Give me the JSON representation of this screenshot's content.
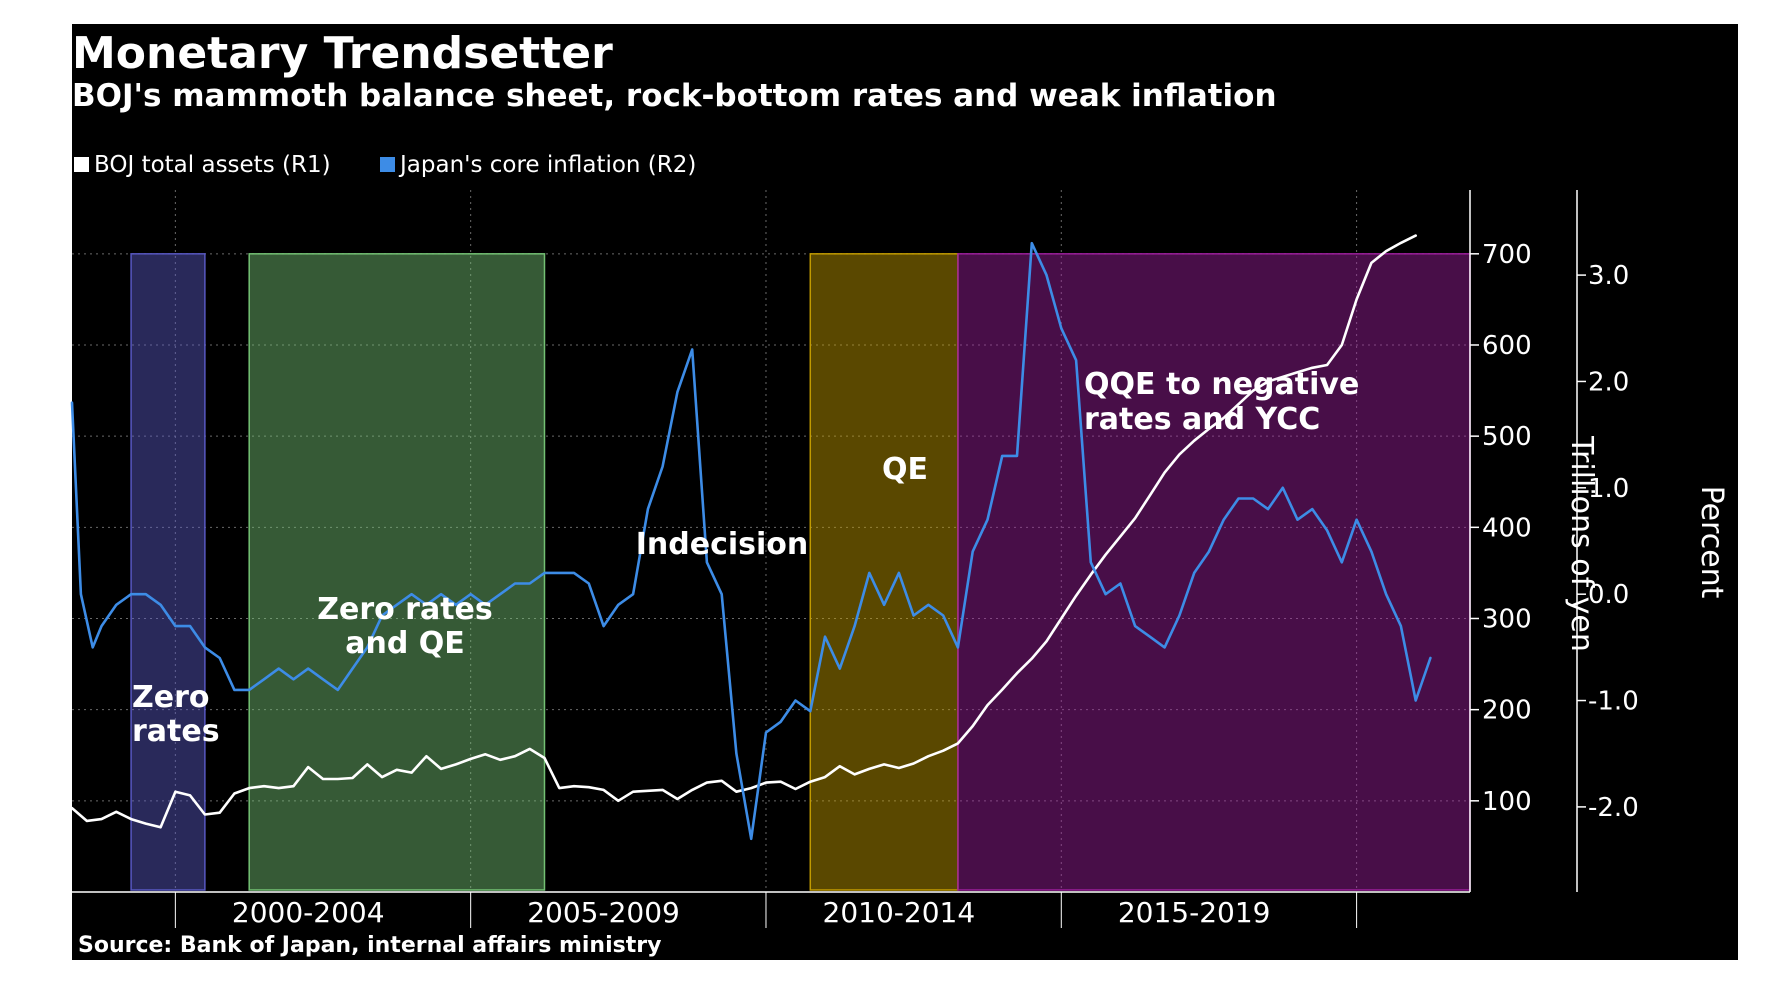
{
  "chart_data": {
    "type": "line",
    "title": "Monetary Trendsetter",
    "subtitle": "BOJ's mammoth balance sheet, rock-bottom rates and weak inflation",
    "source": "Source: Bank of Japan, internal affairs ministry",
    "x_range": [
      1996.5,
      2020.17
    ],
    "period_labels": [
      {
        "label": "2000-2004",
        "center": 2000.5
      },
      {
        "label": "2005-2009",
        "center": 2005.5
      },
      {
        "label": "2010-2014",
        "center": 2010.5
      },
      {
        "label": "2015-2019",
        "center": 2015.5
      }
    ],
    "period_dividers": [
      1998.25,
      2003.25,
      2008.25,
      2013.25,
      2018.25
    ],
    "legend": {
      "placement": "top-left",
      "items": [
        {
          "label": "BOJ total assets (R1)",
          "color": "#ffffff"
        },
        {
          "label": "Japan's core inflation  (R2)",
          "color": "#3d8ce6"
        }
      ]
    },
    "y_axis_r1": {
      "label": "Trillions of yen",
      "range": [
        0,
        770
      ],
      "ticks": [
        100,
        200,
        300,
        400,
        500,
        600,
        700
      ],
      "tick_labels": [
        "100",
        "200",
        "300",
        "400",
        "500",
        "600",
        "700"
      ]
    },
    "y_axis_r2": {
      "label": "Percent",
      "range": [
        -2.8,
        3.8
      ],
      "ticks": [
        -2,
        -1,
        0,
        1,
        2,
        3
      ],
      "tick_labels": [
        "-2.0",
        "-1.0",
        "0.0",
        "1.0",
        "2.0",
        "3.0"
      ]
    },
    "shaded_periods": [
      {
        "label": "Zero rates",
        "start": 1997.5,
        "end": 1998.75,
        "color": "#5b5bc8"
      },
      {
        "label": "Zero rates and QE",
        "start": 1999.5,
        "end": 2004.5,
        "color": "#78c878"
      },
      {
        "label": "QE",
        "start": 2009.0,
        "end": 2011.5,
        "color": "#c8a000"
      },
      {
        "label": "QQE to negative rates and YCC",
        "start": 2011.5,
        "end": 2020.17,
        "color": "#a020a0"
      }
    ],
    "annotations": [
      {
        "label": "Indecision"
      }
    ],
    "series": [
      {
        "name": "BOJ total assets (R1)",
        "color": "#ffffff",
        "axis": "R1",
        "points": [
          [
            1996.5,
            92
          ],
          [
            1996.75,
            78
          ],
          [
            1997.0,
            80
          ],
          [
            1997.25,
            88
          ],
          [
            1997.5,
            80
          ],
          [
            1997.75,
            75
          ],
          [
            1998.0,
            71
          ],
          [
            1998.25,
            110
          ],
          [
            1998.5,
            106
          ],
          [
            1998.75,
            85
          ],
          [
            1999.0,
            87
          ],
          [
            1999.25,
            108
          ],
          [
            1999.5,
            114
          ],
          [
            1999.75,
            116
          ],
          [
            2000.0,
            114
          ],
          [
            2000.25,
            116
          ],
          [
            2000.5,
            137
          ],
          [
            2000.75,
            124
          ],
          [
            2001.0,
            124
          ],
          [
            2001.25,
            125
          ],
          [
            2001.5,
            140
          ],
          [
            2001.75,
            126
          ],
          [
            2002.0,
            134
          ],
          [
            2002.25,
            131
          ],
          [
            2002.5,
            149
          ],
          [
            2002.75,
            135
          ],
          [
            2003.0,
            140
          ],
          [
            2003.25,
            146
          ],
          [
            2003.5,
            151
          ],
          [
            2003.75,
            145
          ],
          [
            2004.0,
            149
          ],
          [
            2004.25,
            157
          ],
          [
            2004.5,
            147
          ],
          [
            2004.75,
            114
          ],
          [
            2005.0,
            116
          ],
          [
            2005.25,
            115
          ],
          [
            2005.5,
            112
          ],
          [
            2005.75,
            100
          ],
          [
            2006.0,
            110
          ],
          [
            2006.25,
            111
          ],
          [
            2006.5,
            112
          ],
          [
            2006.75,
            102
          ],
          [
            2007.0,
            112
          ],
          [
            2007.25,
            120
          ],
          [
            2007.5,
            122
          ],
          [
            2007.75,
            110
          ],
          [
            2008.0,
            114
          ],
          [
            2008.25,
            120
          ],
          [
            2008.5,
            121
          ],
          [
            2008.75,
            113
          ],
          [
            2009.0,
            121
          ],
          [
            2009.25,
            126
          ],
          [
            2009.5,
            138
          ],
          [
            2009.75,
            129
          ],
          [
            2010.0,
            135
          ],
          [
            2010.25,
            140
          ],
          [
            2010.5,
            136
          ],
          [
            2010.75,
            141
          ],
          [
            2011.0,
            149
          ],
          [
            2011.25,
            155
          ],
          [
            2011.5,
            163
          ],
          [
            2011.75,
            182
          ],
          [
            2012.0,
            205
          ],
          [
            2012.25,
            222
          ],
          [
            2012.5,
            240
          ],
          [
            2012.75,
            256
          ],
          [
            2013.0,
            275
          ],
          [
            2013.25,
            300
          ],
          [
            2013.5,
            325
          ],
          [
            2013.75,
            348
          ],
          [
            2014.0,
            370
          ],
          [
            2014.25,
            390
          ],
          [
            2014.5,
            410
          ],
          [
            2014.75,
            435
          ],
          [
            2015.0,
            460
          ],
          [
            2015.25,
            480
          ],
          [
            2015.5,
            495
          ],
          [
            2015.75,
            508
          ],
          [
            2016.0,
            520
          ],
          [
            2016.25,
            535
          ],
          [
            2016.5,
            550
          ],
          [
            2016.75,
            560
          ],
          [
            2017.0,
            565
          ],
          [
            2017.25,
            570
          ],
          [
            2017.5,
            575
          ],
          [
            2017.75,
            578
          ],
          [
            2018.0,
            600
          ],
          [
            2018.25,
            650
          ],
          [
            2018.5,
            690
          ],
          [
            2018.75,
            703
          ],
          [
            2019.0,
            712
          ],
          [
            2019.25,
            720
          ]
        ]
      },
      {
        "name": "Japan's core inflation  (R2)",
        "color": "#3d8ce6",
        "axis": "R2",
        "points": [
          [
            1996.5,
            1.8
          ],
          [
            1996.65,
            0.0
          ],
          [
            1996.85,
            -0.5
          ],
          [
            1997.0,
            -0.3
          ],
          [
            1997.25,
            -0.1
          ],
          [
            1997.5,
            0.0
          ],
          [
            1997.75,
            0.0
          ],
          [
            1998.0,
            -0.1
          ],
          [
            1998.25,
            -0.3
          ],
          [
            1998.5,
            -0.3
          ],
          [
            1998.75,
            -0.5
          ],
          [
            1999.0,
            -0.6
          ],
          [
            1999.25,
            -0.9
          ],
          [
            1999.5,
            -0.9
          ],
          [
            1999.75,
            -0.8
          ],
          [
            2000.0,
            -0.7
          ],
          [
            2000.25,
            -0.8
          ],
          [
            2000.5,
            -0.7
          ],
          [
            2000.75,
            -0.8
          ],
          [
            2001.0,
            -0.9
          ],
          [
            2001.25,
            -0.7
          ],
          [
            2001.5,
            -0.5
          ],
          [
            2001.75,
            -0.2
          ],
          [
            2002.0,
            -0.1
          ],
          [
            2002.25,
            0.0
          ],
          [
            2002.5,
            -0.1
          ],
          [
            2002.75,
            0.0
          ],
          [
            2003.0,
            -0.1
          ],
          [
            2003.25,
            0.0
          ],
          [
            2003.5,
            -0.1
          ],
          [
            2003.75,
            0.0
          ],
          [
            2004.0,
            0.1
          ],
          [
            2004.25,
            0.1
          ],
          [
            2004.5,
            0.2
          ],
          [
            2004.75,
            0.2
          ],
          [
            2005.0,
            0.2
          ],
          [
            2005.25,
            0.1
          ],
          [
            2005.5,
            -0.3
          ],
          [
            2005.75,
            -0.1
          ],
          [
            2006.0,
            0.0
          ],
          [
            2006.25,
            0.8
          ],
          [
            2006.5,
            1.2
          ],
          [
            2006.75,
            1.9
          ],
          [
            2007.0,
            2.3
          ],
          [
            2007.25,
            0.3
          ],
          [
            2007.5,
            0.0
          ],
          [
            2007.75,
            -1.5
          ],
          [
            2008.0,
            -2.3
          ],
          [
            2008.25,
            -1.3
          ],
          [
            2008.5,
            -1.2
          ],
          [
            2008.75,
            -1.0
          ],
          [
            2009.0,
            -1.1
          ],
          [
            2009.25,
            -0.4
          ],
          [
            2009.5,
            -0.7
          ],
          [
            2009.75,
            -0.3
          ],
          [
            2010.0,
            0.2
          ],
          [
            2010.25,
            -0.1
          ],
          [
            2010.5,
            0.2
          ],
          [
            2010.75,
            -0.2
          ],
          [
            2011.0,
            -0.1
          ],
          [
            2011.25,
            -0.2
          ],
          [
            2011.5,
            -0.5
          ],
          [
            2011.75,
            0.4
          ],
          [
            2012.0,
            0.7
          ],
          [
            2012.25,
            1.3
          ],
          [
            2012.5,
            1.3
          ],
          [
            2012.75,
            3.3
          ],
          [
            2013.0,
            3.0
          ],
          [
            2013.25,
            2.5
          ],
          [
            2013.5,
            2.2
          ],
          [
            2013.75,
            0.3
          ],
          [
            2014.0,
            0.0
          ],
          [
            2014.25,
            0.1
          ],
          [
            2014.5,
            -0.3
          ],
          [
            2014.75,
            -0.4
          ],
          [
            2015.0,
            -0.5
          ],
          [
            2015.25,
            -0.2
          ],
          [
            2015.5,
            0.2
          ],
          [
            2015.75,
            0.4
          ],
          [
            2016.0,
            0.7
          ],
          [
            2016.25,
            0.9
          ],
          [
            2016.5,
            0.9
          ],
          [
            2016.75,
            0.8
          ],
          [
            2017.0,
            1.0
          ],
          [
            2017.25,
            0.7
          ],
          [
            2017.5,
            0.8
          ],
          [
            2017.75,
            0.6
          ],
          [
            2018.0,
            0.3
          ],
          [
            2018.25,
            0.7
          ],
          [
            2018.5,
            0.4
          ],
          [
            2018.75,
            0.0
          ],
          [
            2019.0,
            -0.3
          ],
          [
            2019.25,
            -1.0
          ],
          [
            2019.5,
            -0.6
          ]
        ]
      }
    ]
  }
}
